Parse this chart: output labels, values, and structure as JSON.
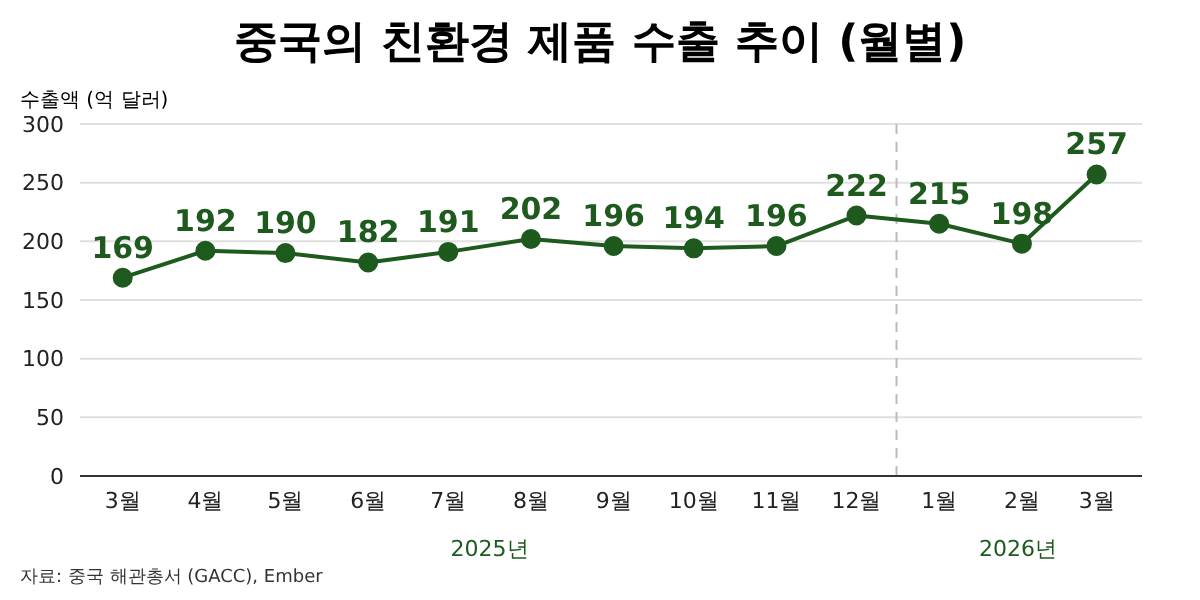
{
  "chart_data": {
    "type": "line",
    "title": "중국의 친환경 제품 수출 추이 (월별)",
    "ylabel": "수출액 (억 달러)",
    "x": [
      "2025-03",
      "2025-04",
      "2025-05",
      "2025-06",
      "2025-07",
      "2025-08",
      "2025-09",
      "2025-10",
      "2025-11",
      "2025-12",
      "2026-01",
      "2026-02",
      "2026-03"
    ],
    "xlim": [
      "2025-02-13",
      "2026-03-18"
    ],
    "xticks": [
      {
        "value": "2025-03",
        "label": "3월"
      },
      {
        "value": "2025-04",
        "label": "4월"
      },
      {
        "value": "2025-05",
        "label": "5월"
      },
      {
        "value": "2025-06",
        "label": "6월"
      },
      {
        "value": "2025-07",
        "label": "7월"
      },
      {
        "value": "2025-08",
        "label": "8월"
      },
      {
        "value": "2025-09",
        "label": "9월"
      },
      {
        "value": "2025-10",
        "label": "10월"
      },
      {
        "value": "2025-11",
        "label": "11월"
      },
      {
        "value": "2025-12",
        "label": "12월"
      },
      {
        "value": "2026-01",
        "label": "1월"
      },
      {
        "value": "2026-02",
        "label": "2월"
      },
      {
        "value": "2026-03",
        "label": "3월"
      }
    ],
    "values": [
      169,
      192,
      190,
      182,
      191,
      202,
      196,
      194,
      196,
      222,
      215,
      198,
      257
    ],
    "color": "#1e5a1e",
    "marker": "circle",
    "line_style": "solid",
    "data_labels": true,
    "ylim": [
      0,
      300
    ],
    "yticks": [
      0,
      50,
      100,
      150,
      200,
      250,
      300
    ],
    "grid": "y",
    "ref_lines": [
      {
        "axis": "x",
        "value": "2025-12-16",
        "color": "#bbbbbb",
        "line_style": "dashed"
      }
    ],
    "annotations": [
      "2025년",
      "2026년",
      "자료: 중국 해관총서 (GACC), Ember"
    ]
  }
}
